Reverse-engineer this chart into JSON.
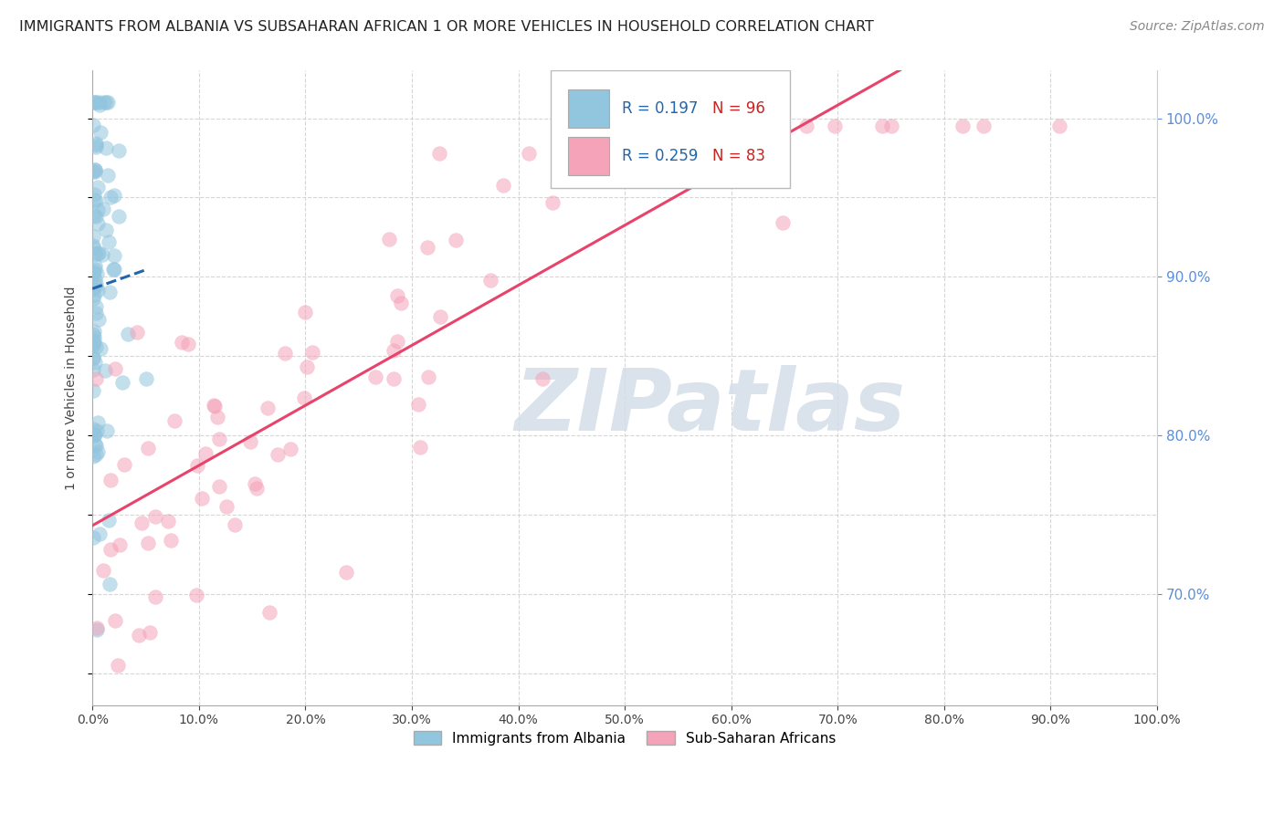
{
  "title": "IMMIGRANTS FROM ALBANIA VS SUBSAHARAN AFRICAN 1 OR MORE VEHICLES IN HOUSEHOLD CORRELATION CHART",
  "source": "Source: ZipAtlas.com",
  "ylabel": "1 or more Vehicles in Household",
  "legend_albania": "Immigrants from Albania",
  "legend_subsaharan": "Sub-Saharan Africans",
  "r_albania": 0.197,
  "n_albania": 96,
  "r_subsaharan": 0.259,
  "n_subsaharan": 83,
  "color_albania": "#92c5de",
  "color_subsaharan": "#f4a3b8",
  "trendline_albania": "#2166ac",
  "trendline_subsaharan": "#e8436a",
  "background": "#ffffff",
  "watermark": "ZIPatlas",
  "watermark_color": "#d4dde8",
  "xlim": [
    0.0,
    1.0
  ],
  "ylim": [
    0.63,
    1.03
  ],
  "xticks": [
    0.0,
    0.1,
    0.2,
    0.3,
    0.4,
    0.5,
    0.6,
    0.7,
    0.8,
    0.9,
    1.0
  ],
  "right_yticks": [
    0.7,
    0.8,
    0.9,
    1.0
  ],
  "right_ytick_colors": "#5b8dd9",
  "marker_size": 130,
  "marker_alpha": 0.55,
  "title_fontsize": 11.5,
  "source_fontsize": 10,
  "legend_fontsize": 11,
  "axis_fontsize": 10
}
